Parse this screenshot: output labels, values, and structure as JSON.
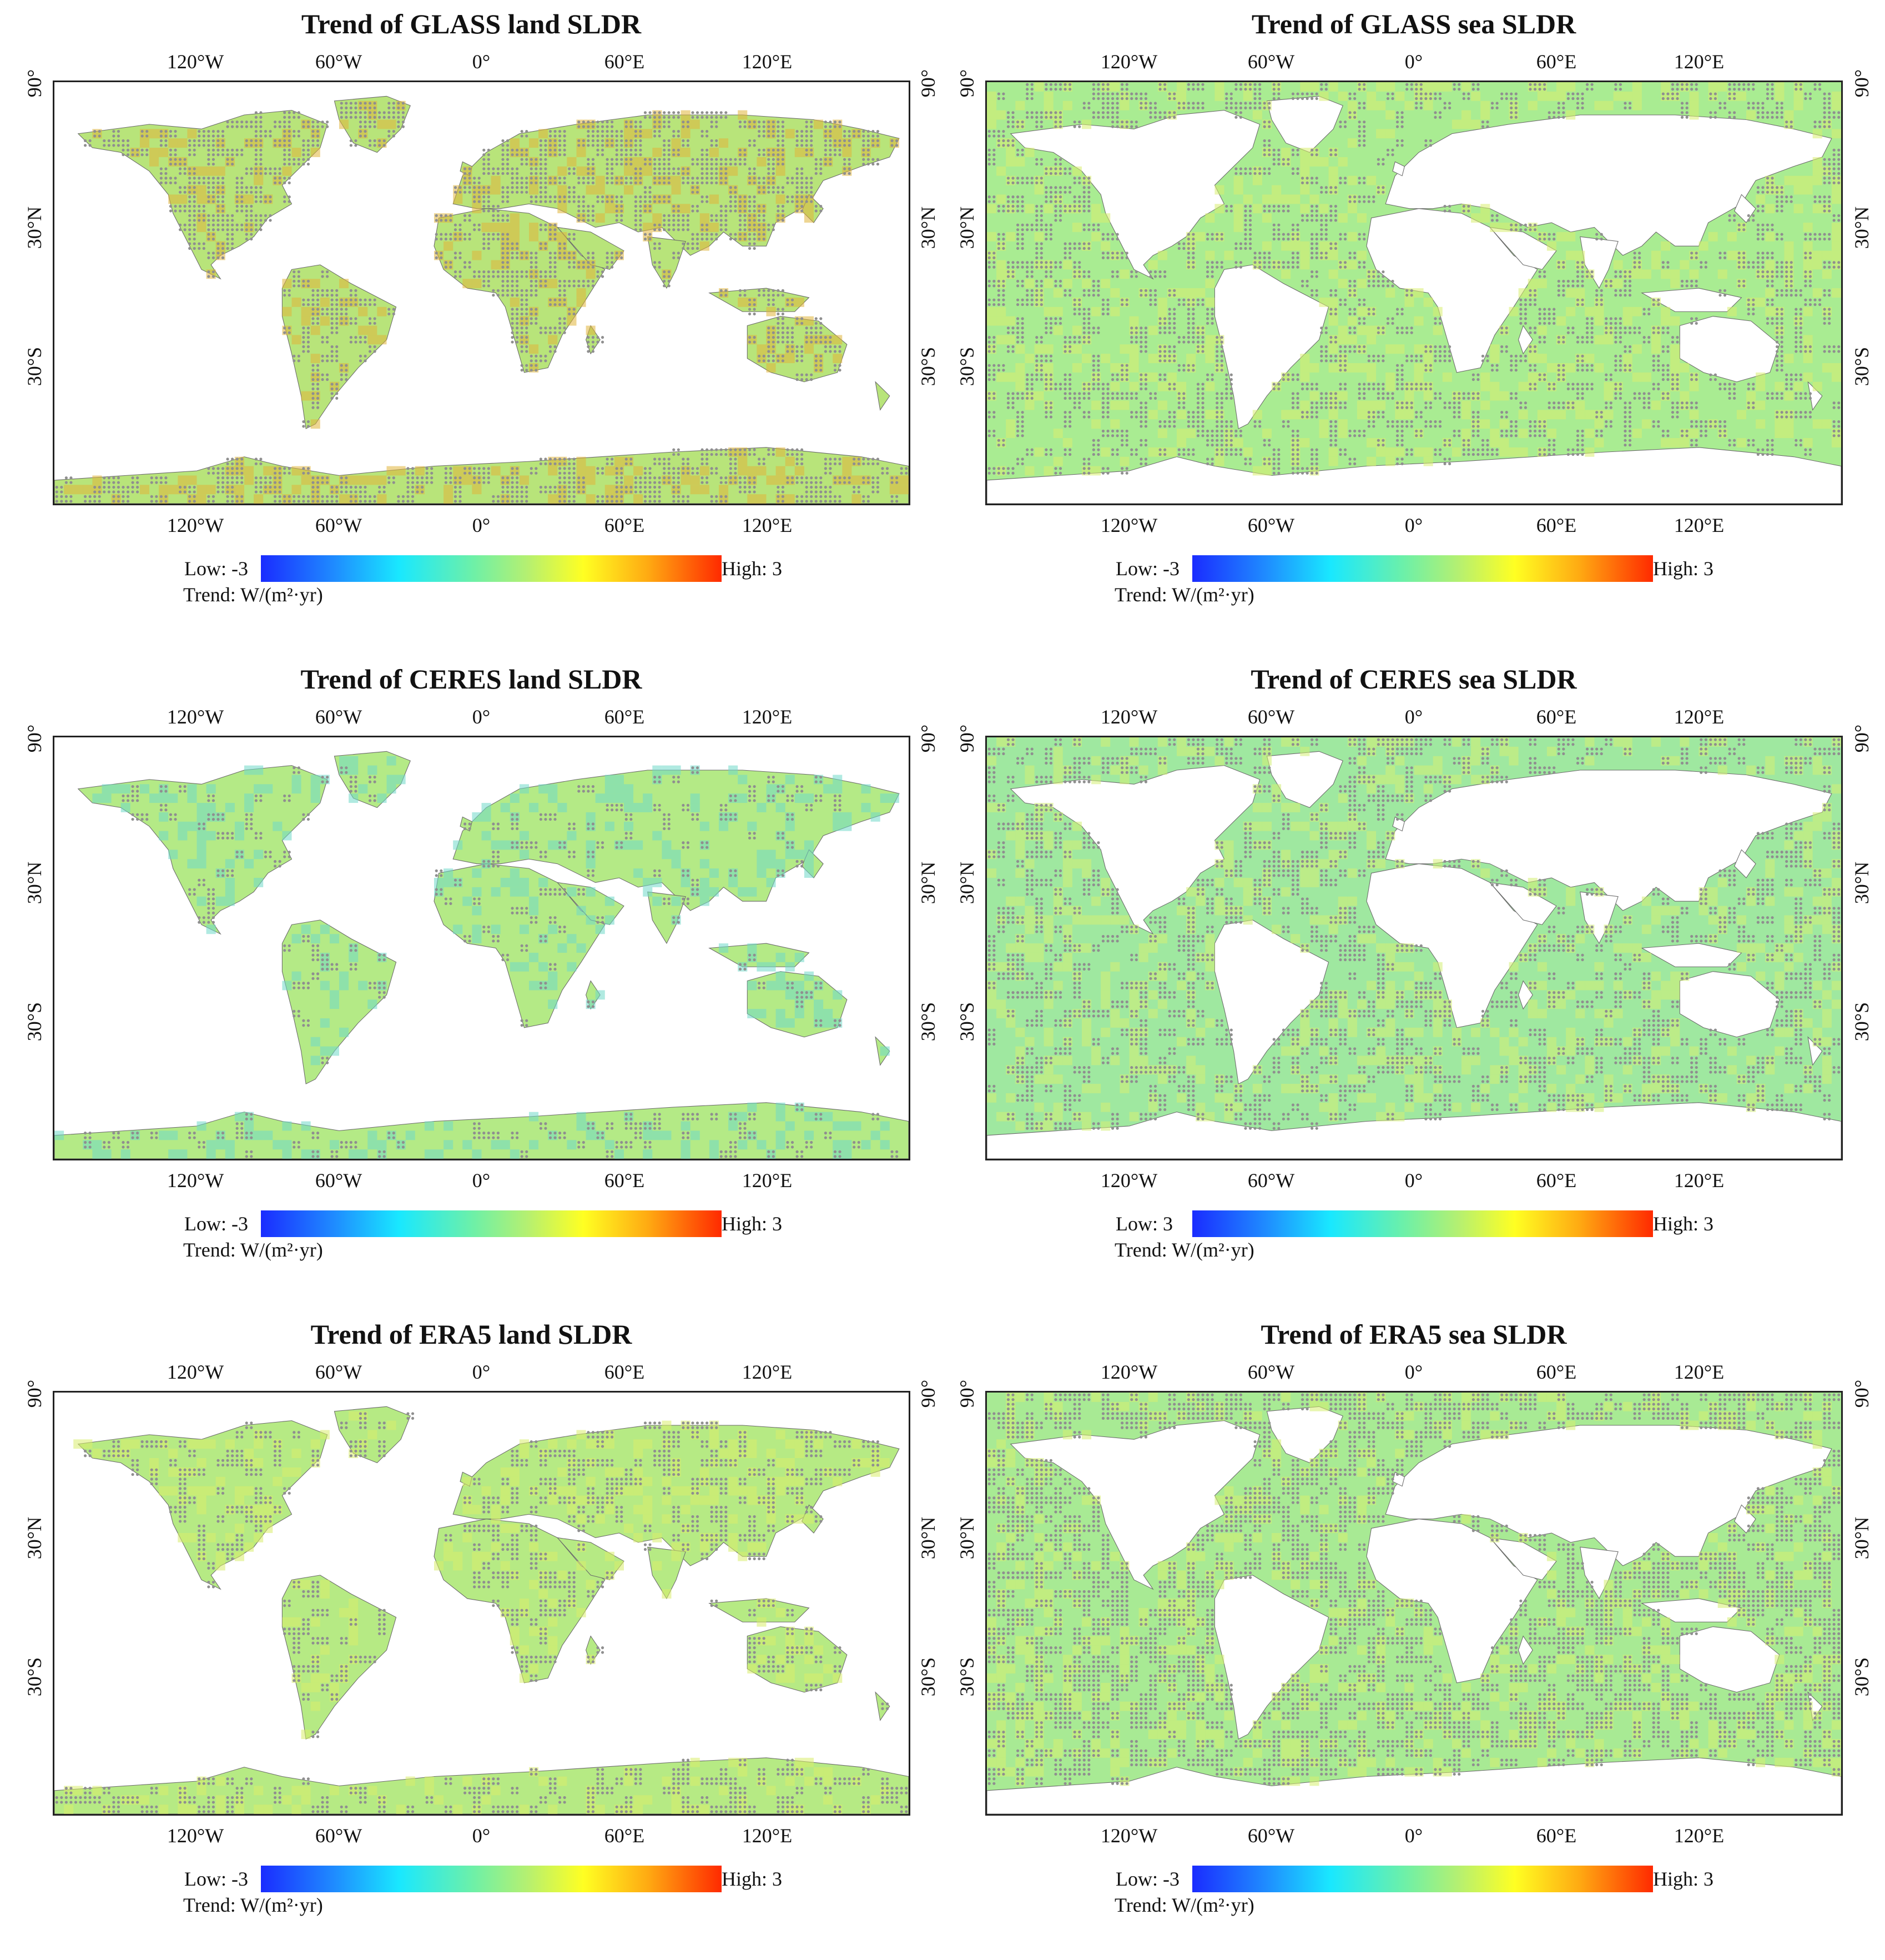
{
  "figure": {
    "colormap": [
      "#1a2cff",
      "#1f8cff",
      "#19e8ff",
      "#6df0a8",
      "#b6f070",
      "#ffff22",
      "#ffaa12",
      "#ff2a00"
    ],
    "sig_dot_color": "#8f8f8f",
    "lon_labels": [
      "120°W",
      "60°W",
      "0°",
      "60°E",
      "120°E"
    ],
    "lat_labels": [
      "90°",
      "30°N",
      "30°S"
    ]
  },
  "panels": [
    {
      "title": "Trend of GLASS land SLDR",
      "domain": "land",
      "base_color": "#b8e47a",
      "hot_color": "#e0b53a",
      "sig_coverage": "high",
      "legend": {
        "low": "Low: -3",
        "high": "High: 3",
        "unit": "Trend: W/(m²·yr)"
      }
    },
    {
      "title": "Trend of GLASS sea SLDR",
      "domain": "sea",
      "base_color": "#a9ec92",
      "hot_color": "#d8ee70",
      "sig_coverage": "medium",
      "legend": {
        "low": "Low: -3",
        "high": "High: 3",
        "unit": "Trend: W/(m²·yr)"
      }
    },
    {
      "title": "Trend of CERES land SLDR",
      "domain": "land",
      "base_color": "#b4ea86",
      "hot_color": "#6fd8c8",
      "sig_coverage": "low",
      "legend": {
        "low": "Low: -3",
        "high": "High: 3",
        "unit": "Trend: W/(m²·yr)"
      }
    },
    {
      "title": "Trend of CERES sea SLDR",
      "domain": "sea",
      "base_color": "#9fe8a0",
      "hot_color": "#d4ee74",
      "sig_coverage": "medium",
      "legend": {
        "low": "Low:  3",
        "high": "High: 3",
        "unit": "Trend: W/(m²·yr)"
      }
    },
    {
      "title": "Trend of ERA5 land SLDR",
      "domain": "land",
      "base_color": "#b6ea84",
      "hot_color": "#d8ec6c",
      "sig_coverage": "medium",
      "legend": {
        "low": "Low: -3",
        "high": "High: 3",
        "unit": "Trend: W/(m²·yr)"
      }
    },
    {
      "title": "Trend of ERA5 sea SLDR",
      "domain": "sea",
      "base_color": "#a8ea94",
      "hot_color": "#d6ee70",
      "sig_coverage": "high",
      "legend": {
        "low": "Low: -3",
        "high": "High: 3",
        "unit": "Trend: W/(m²·yr)"
      }
    }
  ]
}
